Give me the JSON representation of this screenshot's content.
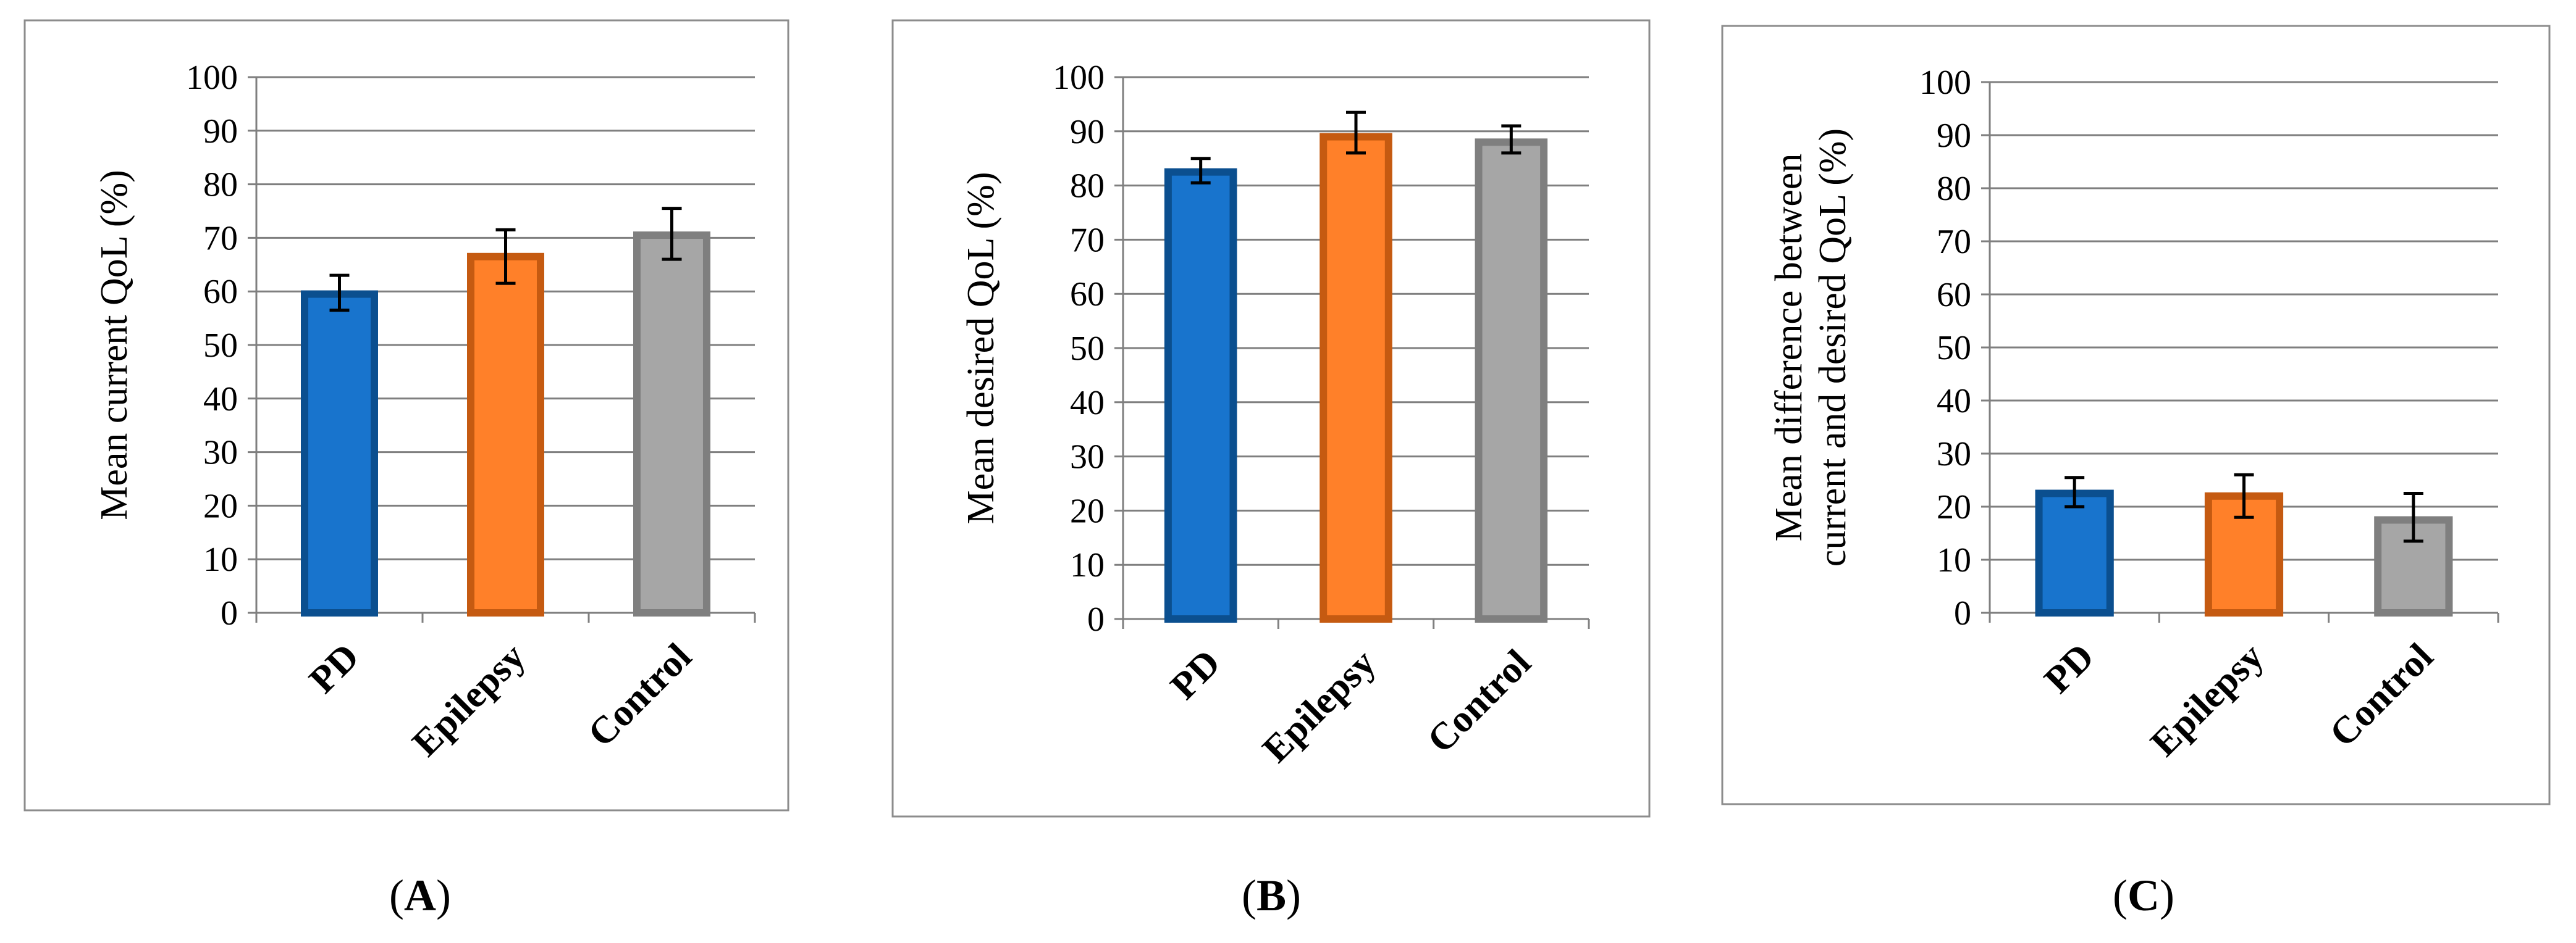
{
  "colors": {
    "pd_fill": "#1874cd",
    "pd_stroke": "#0b4f8f",
    "epilepsy_fill": "#ff8029",
    "epilepsy_stroke": "#c55a11",
    "control_fill": "#a6a6a6",
    "control_stroke": "#7f7f7f",
    "gridline": "#7f7f7f",
    "frame": "#8c8c8c",
    "error_bar": "#000000"
  },
  "chart_data": [
    {
      "type": "bar",
      "panel": "A",
      "caption": "(A)",
      "ylabel": "Mean current QoL (%)",
      "xlabel": "",
      "categories": [
        "PD",
        "Epilepsy",
        "Control"
      ],
      "values": [
        59.5,
        66.5,
        70.5
      ],
      "error_low": [
        56.5,
        61.5,
        66
      ],
      "error_high": [
        63,
        71.5,
        75.5
      ],
      "ylim": [
        0,
        100
      ],
      "yticks": [
        "0",
        "10",
        "20",
        "30",
        "40",
        "50",
        "60",
        "70",
        "80",
        "90",
        "100"
      ],
      "grid": true,
      "legend": "none"
    },
    {
      "type": "bar",
      "panel": "B",
      "caption": "(B)",
      "ylabel": "Mean desired QoL (%)",
      "xlabel": "",
      "categories": [
        "PD",
        "Epilepsy",
        "Control"
      ],
      "values": [
        82.5,
        89,
        88
      ],
      "error_low": [
        80.5,
        86,
        86
      ],
      "error_high": [
        85,
        93.5,
        91
      ],
      "ylim": [
        0,
        100
      ],
      "yticks": [
        "0",
        "10",
        "20",
        "30",
        "40",
        "50",
        "60",
        "70",
        "80",
        "90",
        "100"
      ],
      "grid": true,
      "legend": "none"
    },
    {
      "type": "bar",
      "panel": "C",
      "caption": "(C)",
      "ylabel": "Mean difference between current and desired QoL (%)",
      "ylabel_lines": [
        "Mean difference between",
        "current and desired QoL (%)"
      ],
      "xlabel": "",
      "categories": [
        "PD",
        "Epilepsy",
        "Control"
      ],
      "values": [
        22.5,
        22,
        17.5
      ],
      "error_low": [
        20,
        18,
        13.5
      ],
      "error_high": [
        25.5,
        26,
        22.5
      ],
      "ylim": [
        0,
        100
      ],
      "yticks": [
        "0",
        "10",
        "20",
        "30",
        "40",
        "50",
        "60",
        "70",
        "80",
        "90",
        "100"
      ],
      "grid": true,
      "legend": "none"
    }
  ]
}
